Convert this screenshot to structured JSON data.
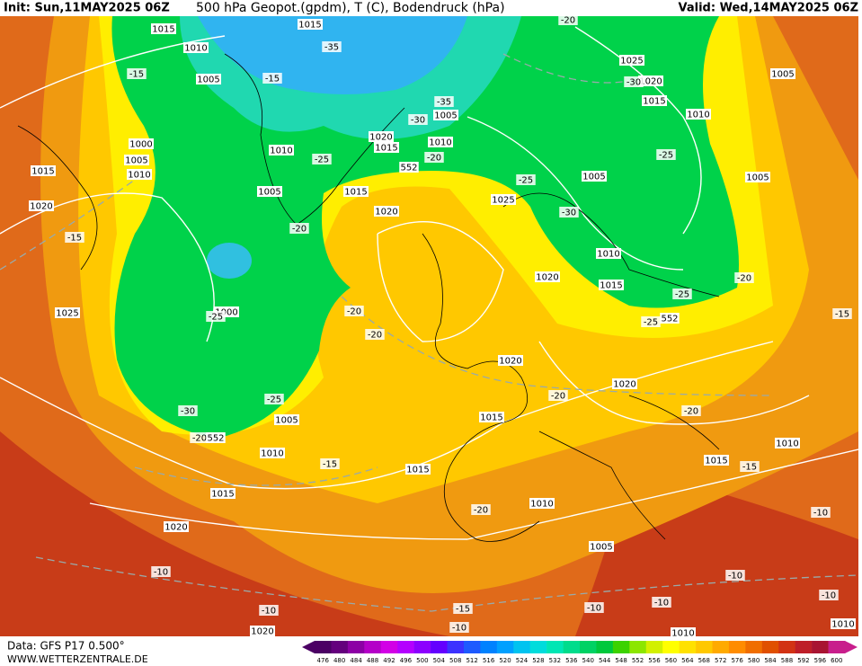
{
  "header": {
    "init": "Init: Sun,11MAY2025 06Z",
    "title": "500 hPa Geopot.(gpdm), T (C), Bodendruck (hPa)",
    "valid": "Valid: Wed,14MAY2025 06Z"
  },
  "footer": {
    "data": "Data: GFS P17 0.500°",
    "website": "WWW.WETTERZENTRALE.DE"
  },
  "map": {
    "labels": [
      "1015",
      "1010",
      "1005",
      "-15",
      "-15",
      "-35",
      "1015",
      "-20",
      "1025",
      "1020",
      "-30",
      "1015",
      "1010",
      "1005",
      "1000",
      "1005",
      "1010",
      "1015",
      "1020",
      "-15",
      "1025",
      "1010",
      "-25",
      "1020",
      "1015",
      "1010",
      "-30",
      "1005",
      "-35",
      "552",
      "-20",
      "1005",
      "1015",
      "-25",
      "1025",
      "1020",
      "-30",
      "1005",
      "-25",
      "1005",
      "-20",
      "1000",
      "-25",
      "-20",
      "-20",
      "1020",
      "1010",
      "1015",
      "-25",
      "552",
      "-25",
      "-20",
      "-15",
      "1020",
      "1020",
      "-20",
      "-20",
      "-25",
      "1005",
      "-30",
      "-20",
      "552",
      "1015",
      "1010",
      "-15",
      "1015",
      "1010",
      "1015",
      "-15",
      "1015",
      "-20",
      "1010",
      "1020",
      "-10",
      "1005",
      "-10",
      "-10",
      "-10",
      "-15",
      "-10",
      "-10",
      "-10",
      "-10",
      "1020",
      "1010",
      "1010"
    ]
  },
  "colorbar": {
    "labels": [
      "476",
      "480",
      "484",
      "488",
      "492",
      "496",
      "500",
      "504",
      "508",
      "512",
      "516",
      "520",
      "524",
      "528",
      "532",
      "536",
      "540",
      "544",
      "548",
      "552",
      "556",
      "560",
      "564",
      "568",
      "572",
      "576",
      "580",
      "584",
      "588",
      "592",
      "596",
      "600"
    ],
    "colors": [
      "#4b0064",
      "#64007d",
      "#8c00a5",
      "#b400c8",
      "#d200e6",
      "#b400ff",
      "#8c00ff",
      "#6400ff",
      "#3c32ff",
      "#1e5aff",
      "#0082ff",
      "#00a0ff",
      "#00c3f0",
      "#00dcdc",
      "#00e6b4",
      "#00dc8c",
      "#00d264",
      "#00c83c",
      "#3cd200",
      "#8ce600",
      "#d2f000",
      "#ffff00",
      "#ffe100",
      "#ffc800",
      "#ffaa00",
      "#ff8c00",
      "#f06e00",
      "#e05000",
      "#d23214",
      "#be1e28",
      "#a81432",
      "#c81e8c"
    ]
  }
}
